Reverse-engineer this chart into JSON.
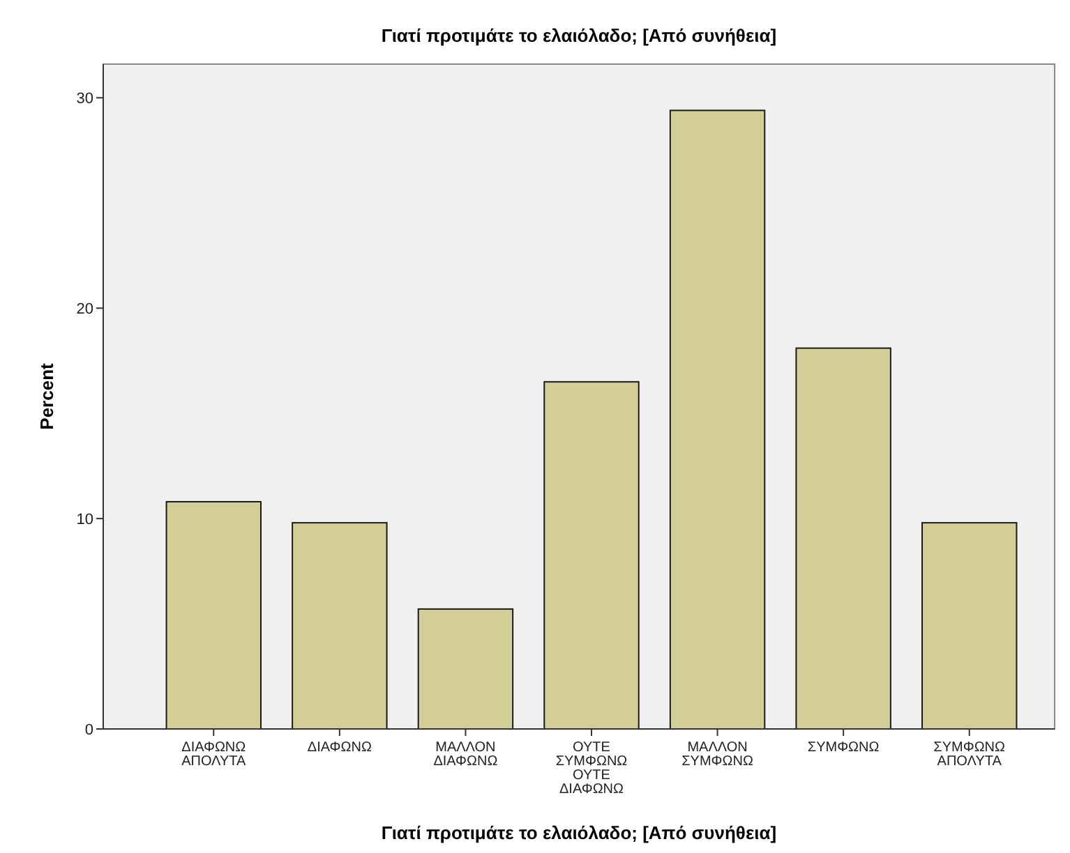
{
  "chart_data": {
    "type": "bar",
    "title": "Γιατί προτιμάτε το ελαιόλαδο; [Από συνήθεια]",
    "xlabel": "Γιατί προτιμάτε το ελαιόλαδο; [Από συνήθεια]",
    "ylabel": "Percent",
    "categories": [
      "ΔΙΑΦΩΝΩ ΑΠΟΛΥΤΑ",
      "ΔΙΑΦΩΝΩ",
      "ΜΑΛΛΟΝ ΔΙΑΦΩΝΩ",
      "ΟΥΤΕ ΣΥΜΦΩΝΩ ΟΥΤΕ ΔΙΑΦΩΝΩ",
      "ΜΑΛΛΟΝ ΣΥΜΦΩΝΩ",
      "ΣΥΜΦΩΝΩ",
      "ΣΥΜΦΩΝΩ ΑΠΟΛΥΤΑ"
    ],
    "values": [
      10.8,
      9.8,
      5.7,
      16.5,
      29.4,
      18.1,
      9.8
    ],
    "color": "#d3ce97",
    "ylim": [
      0,
      31.6
    ],
    "yticks": [
      0,
      10,
      20,
      30
    ]
  }
}
